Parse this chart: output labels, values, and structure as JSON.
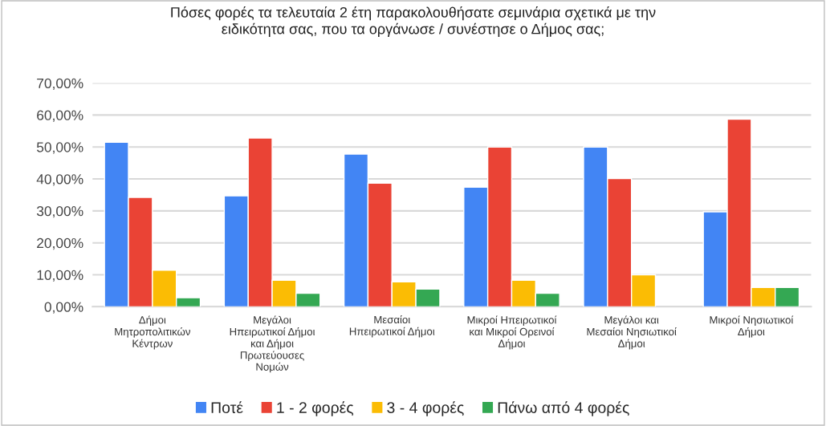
{
  "chart_data": {
    "type": "bar",
    "title": "Πόσες φορές τα τελευταία 2 έτη παρακολουθήσατε σεμινάρια σχετικά με την\nειδικότητα σας, που τα οργάνωσε / συνέστησε ο Δήμος σας;",
    "categories": [
      "Δήμοι\nΜητροπολιτικών\nΚέντρων",
      "Μεγάλοι\nΗπειρωτικοί Δήμοι\nκαι Δήμοι\nΠρωτεύουσες\nΝομών",
      "Μεσαίοι\nΗπειρωτικοί Δήμοι",
      "Μικροί Ηπειρωτικοί\nκαι Μικροί Ορεινοί\nΔήμοι",
      "Μεγάλοι και\nΜεσαίοι Νησιωτικοί\nΔήμοι",
      "Μικροί Νησιωτικοί\nΔήμοι"
    ],
    "series": [
      {
        "name": "Ποτέ",
        "color": "#4285f4",
        "values": [
          51.5,
          34.7,
          47.8,
          37.4,
          50.0,
          29.7
        ]
      },
      {
        "name": "1 - 2 φορές",
        "color": "#ea4335",
        "values": [
          34.2,
          52.8,
          38.7,
          50.0,
          40.1,
          58.7
        ]
      },
      {
        "name": "3 - 4 φορές",
        "color": "#fbbc04",
        "values": [
          11.4,
          8.3,
          7.8,
          8.3,
          10.0,
          6.0
        ]
      },
      {
        "name": "Πάνω από 4 φορές",
        "color": "#34a853",
        "values": [
          2.8,
          4.2,
          5.5,
          4.2,
          null,
          6.0
        ]
      }
    ],
    "ylim": [
      0,
      70
    ],
    "yticks": [
      {
        "value": 0,
        "label": "0,00%"
      },
      {
        "value": 10,
        "label": "10,00%"
      },
      {
        "value": 20,
        "label": "20,00%"
      },
      {
        "value": 30,
        "label": "30,00%"
      },
      {
        "value": 40,
        "label": "40,00%"
      },
      {
        "value": 50,
        "label": "50,00%"
      },
      {
        "value": 60,
        "label": "60,00%"
      },
      {
        "value": 70,
        "label": "70,00%"
      }
    ],
    "grid": "y",
    "legend": "bottom"
  }
}
